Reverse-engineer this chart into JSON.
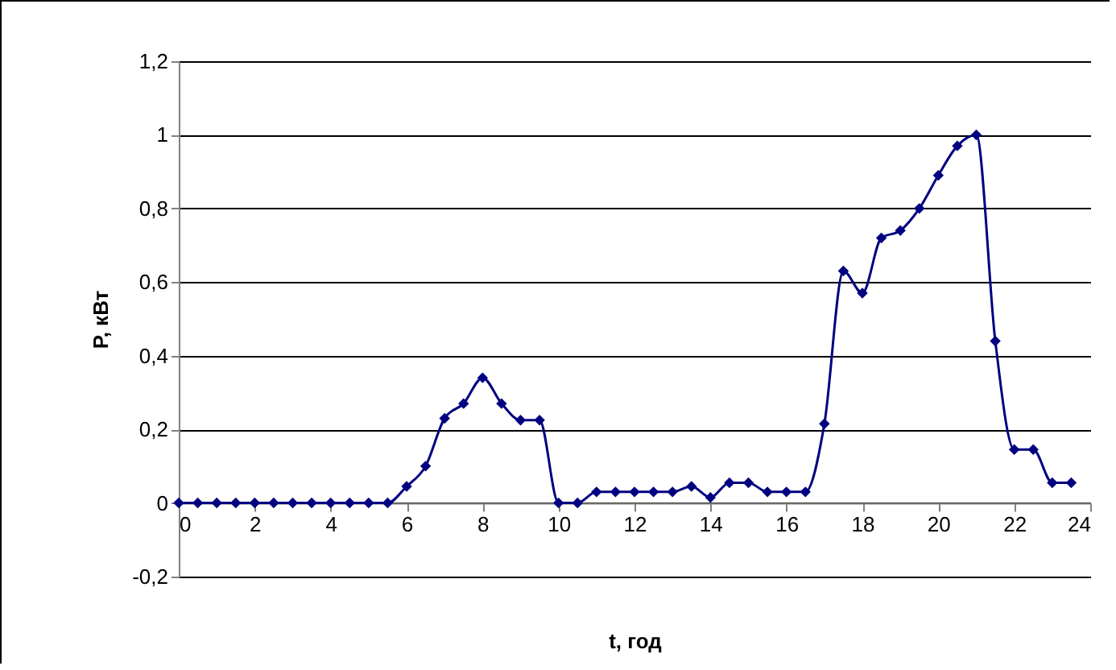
{
  "chart_data": {
    "type": "line",
    "xlabel": "t, год",
    "ylabel": "P, кВт",
    "x": [
      0,
      0.5,
      1,
      1.5,
      2,
      2.5,
      3,
      3.5,
      4,
      4.5,
      5,
      5.5,
      6,
      6.5,
      7,
      7.5,
      8,
      8.5,
      9,
      9.5,
      10,
      10.5,
      11,
      11.5,
      12,
      12.5,
      13,
      13.5,
      14,
      14.5,
      15,
      15.5,
      16,
      16.5,
      17,
      17.5,
      18,
      18.5,
      19,
      19.5,
      20,
      20.5,
      21,
      21.5,
      22,
      22.5,
      23,
      23.5
    ],
    "series": [
      {
        "color": "#000080",
        "values": [
          0,
          0,
          0,
          0,
          0,
          0,
          0,
          0,
          0,
          0,
          0,
          0,
          0.045,
          0.1,
          0.23,
          0.27,
          0.34,
          0.27,
          0.225,
          0.225,
          0,
          0,
          0.03,
          0.03,
          0.03,
          0.03,
          0.03,
          0.045,
          0.015,
          0.055,
          0.055,
          0.03,
          0.03,
          0.03,
          0.215,
          0.63,
          0.57,
          0.72,
          0.74,
          0.8,
          0.89,
          0.97,
          1.0,
          0.44,
          0.145,
          0.145,
          0.055,
          0.055
        ]
      }
    ],
    "xlim": [
      0,
      24
    ],
    "xticks": [
      0,
      2,
      4,
      6,
      8,
      10,
      12,
      14,
      16,
      18,
      20,
      22,
      24
    ],
    "ylim": [
      -0.2,
      1.2
    ],
    "yticks": [
      {
        "value": -0.2,
        "label": "-0,2"
      },
      0,
      {
        "value": 0.2,
        "label": "0,2"
      },
      {
        "value": 0.4,
        "label": "0,4"
      },
      {
        "value": 0.6,
        "label": "0,6"
      },
      {
        "value": 0.8,
        "label": "0,8"
      },
      1,
      {
        "value": 1.2,
        "label": "1,2"
      }
    ],
    "grid": "y",
    "marker": "diamond",
    "line_style": "solid"
  }
}
